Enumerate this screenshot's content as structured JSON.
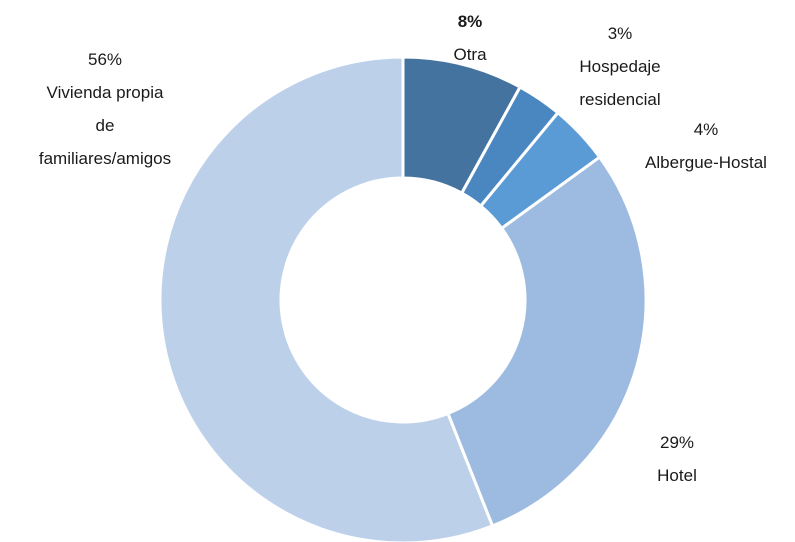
{
  "chart_data": {
    "type": "donut",
    "categories": [
      "Otra",
      "Hospedaje\nresidencial",
      "Albergue-Hostal",
      "Hotel",
      "Vivienda propia\nde\nfamiliares/amigos"
    ],
    "values": [
      8,
      3,
      4,
      29,
      56
    ],
    "value_labels": [
      "8%",
      "3%",
      "4%",
      "29%",
      "56%"
    ],
    "colors": [
      "#44739f",
      "#4a86c0",
      "#5b9bd5",
      "#9dbbe1",
      "#bdd0ea"
    ]
  }
}
